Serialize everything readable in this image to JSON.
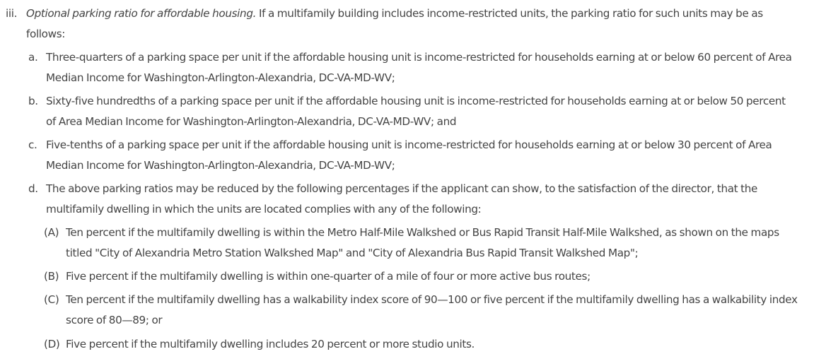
{
  "section": {
    "marker": "iii.",
    "heading": "Optional parking ratio for affordable housing.",
    "text_line1": " If a multifamily building includes income-restricted units, the parking ratio for such units may be as",
    "text_line2": "follows:",
    "items": [
      {
        "marker": "a.",
        "lines": [
          "Three-quarters of a parking space per unit if the affordable housing unit is income-restricted for households earning at or below 60 percent of Area",
          "Median Income for Washington-Arlington-Alexandria, DC-VA-MD-WV;"
        ]
      },
      {
        "marker": "b.",
        "lines": [
          "Sixty-five hundredths of a parking space per unit if the affordable housing unit is income-restricted for households earning at or below 50 percent",
          "of Area Median Income for Washington-Arlington-Alexandria, DC-VA-MD-WV; and"
        ]
      },
      {
        "marker": "c.",
        "lines": [
          "Five-tenths of a parking space per unit if the affordable housing unit is income-restricted for households earning at or below 30 percent of Area",
          "Median Income for Washington-Arlington-Alexandria, DC-VA-MD-WV;"
        ]
      },
      {
        "marker": "d.",
        "lines": [
          "The above parking ratios may be reduced by the following percentages if the applicant can show, to the satisfaction of the director, that the",
          "multifamily dwelling in which the units are located complies with any of the following:"
        ]
      }
    ],
    "subitems": [
      {
        "marker": "(A)",
        "lines": [
          "Ten percent if the multifamily dwelling is within the Metro Half-Mile Walkshed or Bus Rapid Transit Half-Mile Walkshed, as shown on the maps",
          "titled \"City of Alexandria Metro Station Walkshed Map\" and \"City of Alexandria Bus Rapid Transit Walkshed Map\";"
        ]
      },
      {
        "marker": "(B)",
        "lines": [
          "Five percent if the multifamily dwelling is within one-quarter of a mile of four or more active bus routes;"
        ]
      },
      {
        "marker": "(C)",
        "lines": [
          "Ten percent if the multifamily dwelling has a walkability index score of 90—100 or five percent if the multifamily dwelling has a walkability index",
          "score of 80—89; or"
        ]
      },
      {
        "marker": "(D)",
        "lines": [
          "Five percent if the multifamily dwelling includes 20 percent or more studio units."
        ]
      }
    ]
  }
}
